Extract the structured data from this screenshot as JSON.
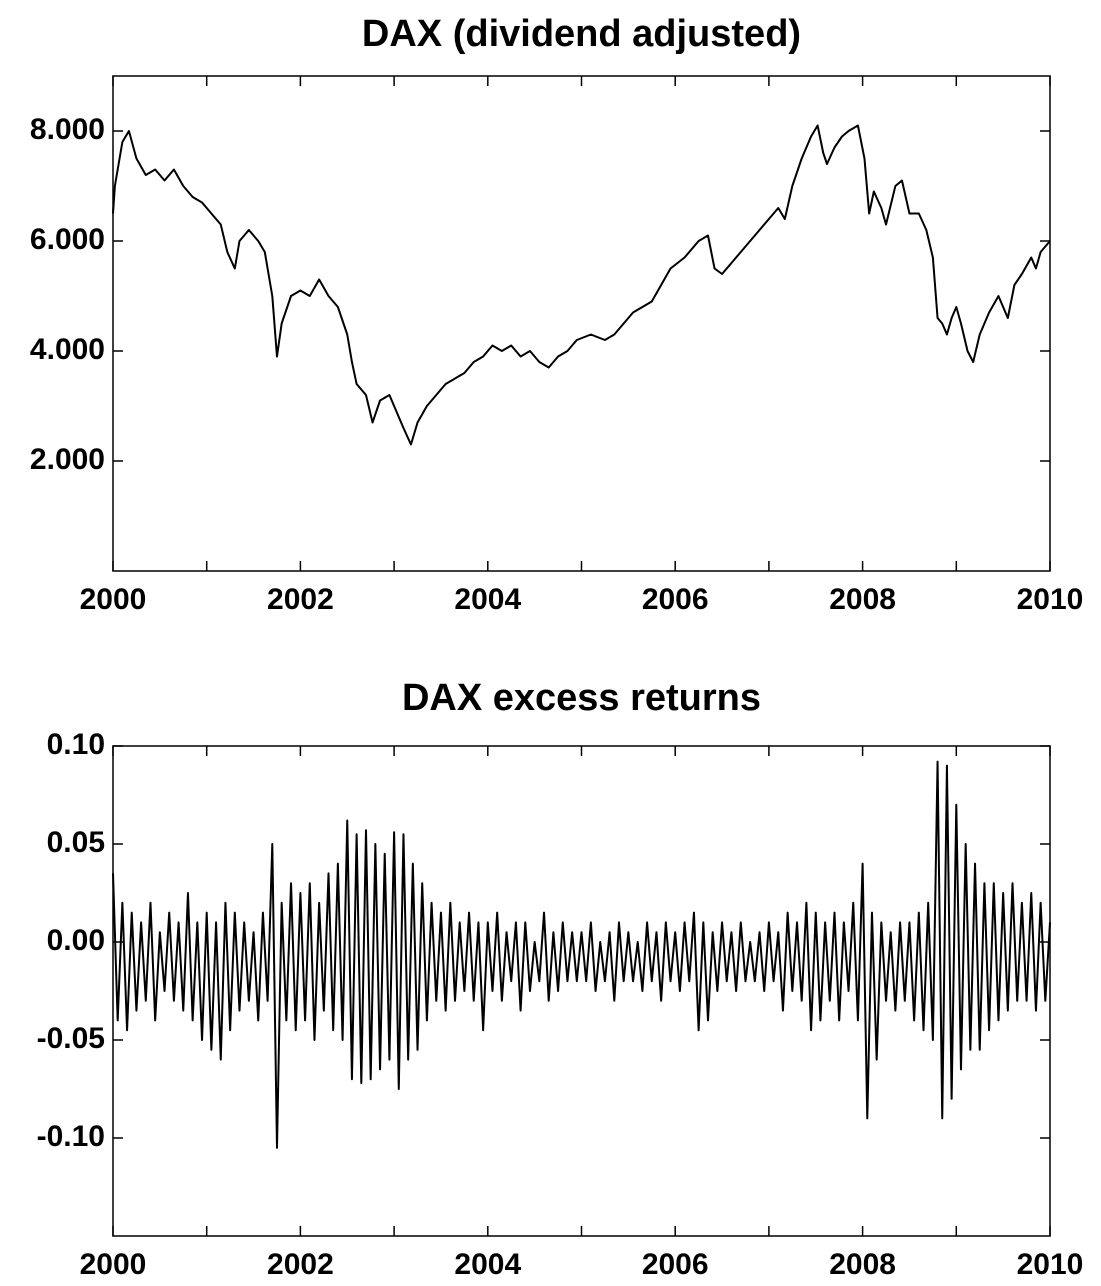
{
  "chart_data": [
    {
      "type": "line",
      "title": "DAX (dividend adjusted)",
      "color": "#000000",
      "x": [
        2000.0,
        2000.02,
        2000.1,
        2000.17,
        2000.25,
        2000.35,
        2000.45,
        2000.55,
        2000.65,
        2000.75,
        2000.85,
        2000.95,
        2001.05,
        2001.15,
        2001.22,
        2001.3,
        2001.35,
        2001.45,
        2001.55,
        2001.62,
        2001.7,
        2001.75,
        2001.8,
        2001.9,
        2002.0,
        2002.1,
        2002.2,
        2002.3,
        2002.4,
        2002.5,
        2002.55,
        2002.6,
        2002.7,
        2002.77,
        2002.85,
        2002.95,
        2003.0,
        2003.1,
        2003.18,
        2003.25,
        2003.35,
        2003.45,
        2003.55,
        2003.65,
        2003.75,
        2003.85,
        2003.95,
        2004.05,
        2004.15,
        2004.25,
        2004.35,
        2004.45,
        2004.55,
        2004.65,
        2004.75,
        2004.85,
        2004.95,
        2005.1,
        2005.25,
        2005.35,
        2005.45,
        2005.55,
        2005.65,
        2005.75,
        2005.85,
        2005.95,
        2006.1,
        2006.25,
        2006.35,
        2006.42,
        2006.5,
        2006.6,
        2006.7,
        2006.8,
        2006.9,
        2007.0,
        2007.1,
        2007.17,
        2007.25,
        2007.35,
        2007.45,
        2007.52,
        2007.58,
        2007.62,
        2007.7,
        2007.78,
        2007.85,
        2007.95,
        2008.02,
        2008.07,
        2008.12,
        2008.2,
        2008.25,
        2008.35,
        2008.42,
        2008.5,
        2008.6,
        2008.68,
        2008.75,
        2008.8,
        2008.85,
        2008.9,
        2008.95,
        2009.0,
        2009.05,
        2009.12,
        2009.18,
        2009.25,
        2009.35,
        2009.45,
        2009.5,
        2009.55,
        2009.62,
        2009.7,
        2009.8,
        2009.85,
        2009.9,
        2010.0
      ],
      "values": [
        6500,
        7000,
        7800,
        8000,
        7500,
        7200,
        7300,
        7100,
        7300,
        7000,
        6800,
        6700,
        6500,
        6300,
        5800,
        5500,
        6000,
        6200,
        6000,
        5800,
        5000,
        3900,
        4500,
        5000,
        5100,
        5000,
        5300,
        5000,
        4800,
        4300,
        3800,
        3400,
        3200,
        2700,
        3100,
        3200,
        3000,
        2600,
        2300,
        2700,
        3000,
        3200,
        3400,
        3500,
        3600,
        3800,
        3900,
        4100,
        4000,
        4100,
        3900,
        4000,
        3800,
        3700,
        3900,
        4000,
        4200,
        4300,
        4200,
        4300,
        4500,
        4700,
        4800,
        4900,
        5200,
        5500,
        5700,
        6000,
        6100,
        5500,
        5400,
        5600,
        5800,
        6000,
        6200,
        6400,
        6600,
        6400,
        7000,
        7500,
        7900,
        8100,
        7600,
        7400,
        7700,
        7900,
        8000,
        8100,
        7500,
        6500,
        6900,
        6600,
        6300,
        7000,
        7100,
        6500,
        6500,
        6200,
        5700,
        4600,
        4500,
        4300,
        4600,
        4800,
        4500,
        4000,
        3800,
        4300,
        4700,
        5000,
        4800,
        4600,
        5200,
        5400,
        5700,
        5500,
        5800,
        6000
      ],
      "xlim": [
        2000,
        2010
      ],
      "xticks": [
        2000,
        2002,
        2004,
        2006,
        2008,
        2010
      ],
      "xminorticks": [
        2001,
        2003,
        2005,
        2007,
        2009
      ],
      "ylim": [
        0,
        9000
      ],
      "yticks": [
        {
          "value": 2000,
          "label": "2.000"
        },
        {
          "value": 4000,
          "label": "4.000"
        },
        {
          "value": 6000,
          "label": "6.000"
        },
        {
          "value": 8000,
          "label": "8.000"
        }
      ]
    },
    {
      "type": "line",
      "title": "DAX excess returns",
      "color": "#000000",
      "x": [
        2000.0,
        2000.05,
        2000.1,
        2000.15,
        2000.2,
        2000.25,
        2000.3,
        2000.35,
        2000.4,
        2000.45,
        2000.5,
        2000.55,
        2000.6,
        2000.65,
        2000.7,
        2000.75,
        2000.8,
        2000.85,
        2000.9,
        2000.95,
        2001.0,
        2001.05,
        2001.1,
        2001.15,
        2001.2,
        2001.25,
        2001.3,
        2001.35,
        2001.4,
        2001.45,
        2001.5,
        2001.55,
        2001.6,
        2001.65,
        2001.7,
        2001.75,
        2001.8,
        2001.85,
        2001.9,
        2001.95,
        2002.0,
        2002.05,
        2002.1,
        2002.15,
        2002.2,
        2002.25,
        2002.3,
        2002.35,
        2002.4,
        2002.45,
        2002.5,
        2002.55,
        2002.6,
        2002.65,
        2002.7,
        2002.75,
        2002.8,
        2002.85,
        2002.9,
        2002.95,
        2003.0,
        2003.05,
        2003.1,
        2003.15,
        2003.2,
        2003.25,
        2003.3,
        2003.35,
        2003.4,
        2003.45,
        2003.5,
        2003.55,
        2003.6,
        2003.65,
        2003.7,
        2003.75,
        2003.8,
        2003.85,
        2003.9,
        2003.95,
        2004.0,
        2004.05,
        2004.1,
        2004.15,
        2004.2,
        2004.25,
        2004.3,
        2004.35,
        2004.4,
        2004.45,
        2004.5,
        2004.55,
        2004.6,
        2004.65,
        2004.7,
        2004.75,
        2004.8,
        2004.85,
        2004.9,
        2004.95,
        2005.0,
        2005.05,
        2005.1,
        2005.15,
        2005.2,
        2005.25,
        2005.3,
        2005.35,
        2005.4,
        2005.45,
        2005.5,
        2005.55,
        2005.6,
        2005.65,
        2005.7,
        2005.75,
        2005.8,
        2005.85,
        2005.9,
        2005.95,
        2006.0,
        2006.05,
        2006.1,
        2006.15,
        2006.2,
        2006.25,
        2006.3,
        2006.35,
        2006.4,
        2006.45,
        2006.5,
        2006.55,
        2006.6,
        2006.65,
        2006.7,
        2006.75,
        2006.8,
        2006.85,
        2006.9,
        2006.95,
        2007.0,
        2007.05,
        2007.1,
        2007.15,
        2007.2,
        2007.25,
        2007.3,
        2007.35,
        2007.4,
        2007.45,
        2007.5,
        2007.55,
        2007.6,
        2007.65,
        2007.7,
        2007.75,
        2007.8,
        2007.85,
        2007.9,
        2007.95,
        2008.0,
        2008.05,
        2008.1,
        2008.15,
        2008.2,
        2008.25,
        2008.3,
        2008.35,
        2008.4,
        2008.45,
        2008.5,
        2008.55,
        2008.6,
        2008.65,
        2008.7,
        2008.75,
        2008.8,
        2008.85,
        2008.9,
        2008.95,
        2009.0,
        2009.05,
        2009.1,
        2009.15,
        2009.2,
        2009.25,
        2009.3,
        2009.35,
        2009.4,
        2009.45,
        2009.5,
        2009.55,
        2009.6,
        2009.65,
        2009.7,
        2009.75,
        2009.8,
        2009.85,
        2009.9,
        2009.95,
        2010.0
      ],
      "values": [
        0.035,
        -0.04,
        0.02,
        -0.045,
        0.015,
        -0.035,
        0.01,
        -0.03,
        0.02,
        -0.04,
        0.005,
        -0.025,
        0.015,
        -0.03,
        0.01,
        -0.035,
        0.025,
        -0.04,
        0.01,
        -0.05,
        0.015,
        -0.055,
        0.01,
        -0.06,
        0.02,
        -0.045,
        0.015,
        -0.035,
        0.01,
        -0.03,
        0.005,
        -0.04,
        0.015,
        -0.03,
        0.05,
        -0.105,
        0.02,
        -0.04,
        0.03,
        -0.045,
        0.025,
        -0.04,
        0.03,
        -0.05,
        0.02,
        -0.035,
        0.035,
        -0.045,
        0.04,
        -0.05,
        0.062,
        -0.07,
        0.055,
        -0.072,
        0.057,
        -0.07,
        0.05,
        -0.065,
        0.045,
        -0.06,
        0.056,
        -0.075,
        0.055,
        -0.06,
        0.04,
        -0.055,
        0.03,
        -0.04,
        0.02,
        -0.03,
        0.015,
        -0.035,
        0.02,
        -0.03,
        0.01,
        -0.025,
        0.015,
        -0.03,
        0.01,
        -0.045,
        0.01,
        -0.025,
        0.015,
        -0.03,
        0.005,
        -0.02,
        0.01,
        -0.035,
        0.01,
        -0.025,
        0.0,
        -0.02,
        0.015,
        -0.03,
        0.005,
        -0.025,
        0.01,
        -0.02,
        0.005,
        -0.02,
        0.005,
        -0.02,
        0.01,
        -0.025,
        0.0,
        -0.02,
        0.005,
        -0.03,
        0.01,
        -0.02,
        0.005,
        -0.02,
        0.0,
        -0.025,
        0.01,
        -0.02,
        0.005,
        -0.03,
        0.01,
        -0.02,
        0.005,
        -0.025,
        0.01,
        -0.02,
        0.015,
        -0.045,
        0.01,
        -0.04,
        0.005,
        -0.025,
        0.01,
        -0.02,
        0.005,
        -0.025,
        0.01,
        -0.02,
        0.0,
        -0.02,
        0.005,
        -0.025,
        0.01,
        -0.02,
        0.005,
        -0.035,
        0.015,
        -0.025,
        0.01,
        -0.03,
        0.02,
        -0.045,
        0.015,
        -0.04,
        0.01,
        -0.03,
        0.015,
        -0.04,
        0.01,
        -0.025,
        0.02,
        -0.04,
        0.04,
        -0.09,
        0.015,
        -0.06,
        0.01,
        -0.03,
        0.005,
        -0.035,
        0.01,
        -0.03,
        0.01,
        -0.04,
        0.015,
        -0.045,
        0.02,
        -0.05,
        0.092,
        -0.09,
        0.09,
        -0.08,
        0.07,
        -0.065,
        0.05,
        -0.055,
        0.04,
        -0.055,
        0.03,
        -0.045,
        0.03,
        -0.04,
        0.025,
        -0.035,
        0.03,
        -0.03,
        0.02,
        -0.03,
        0.025,
        -0.035,
        0.02,
        -0.03,
        0.01
      ],
      "xlim": [
        2000,
        2010
      ],
      "xticks": [
        2000,
        2002,
        2004,
        2006,
        2008,
        2010
      ],
      "xminorticks": [
        2001,
        2003,
        2005,
        2007,
        2009
      ],
      "ylim": [
        -0.15,
        0.1
      ],
      "yticks": [
        {
          "value": -0.1,
          "label": "-0.10"
        },
        {
          "value": -0.05,
          "label": "-0.05"
        },
        {
          "value": 0,
          "label": "0.00"
        },
        {
          "value": 0.05,
          "label": "0.05"
        },
        {
          "value": 0.1,
          "label": "0.10"
        }
      ]
    }
  ]
}
